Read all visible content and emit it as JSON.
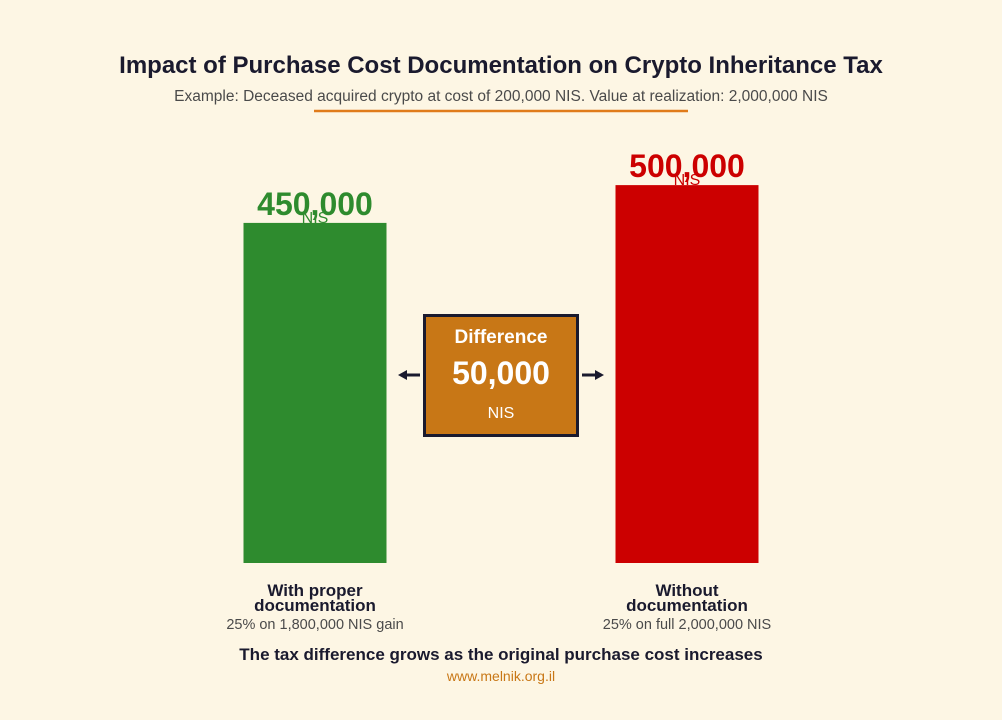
{
  "chart_data": {
    "type": "bar",
    "title": "Impact of Purchase Cost Documentation on Crypto Inheritance Tax",
    "subtitle": "Example: Deceased acquired crypto at cost of 200,000 NIS. Value at realization: 2,000,000 NIS",
    "categories": [
      "With proper documentation",
      "Without documentation"
    ],
    "category_lines": [
      [
        "With proper",
        "documentation"
      ],
      [
        "Without",
        "documentation"
      ]
    ],
    "descriptions": [
      "25% on 1,800,000 NIS gain",
      "25% on full 2,000,000 NIS"
    ],
    "values": [
      450000,
      500000
    ],
    "value_labels": [
      "450,000",
      "500,000"
    ],
    "unit_label": "NIS",
    "ylim": [
      0,
      520000
    ],
    "difference": {
      "title": "Difference",
      "value": 50000,
      "value_label": "50,000",
      "unit": "NIS"
    },
    "footer_note": "The tax difference grows as the original purchase cost increases",
    "source_url": "www.melnik.org.il",
    "colors": {
      "background": "#fdf6e4",
      "with_documentation": "#2e8b2e",
      "without_documentation": "#cc0000",
      "difference_box": "#c87716",
      "accent_line": "#e07b1a",
      "text_dark": "#1a1a2e",
      "text_muted": "#4a4a4a",
      "url": "#c87716"
    }
  }
}
